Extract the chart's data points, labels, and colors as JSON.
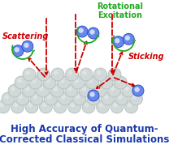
{
  "bg_color": "#ffffff",
  "title_line1": "High Accuracy of Quantum-",
  "title_line2": "Corrected Classical Simulations",
  "title_color": "#1a3aaa",
  "title_fontsize": 8.5,
  "label_scattering": "Scattering",
  "label_scattering_color": "#cc0000",
  "label_rotational": "Rotational",
  "label_excitation": "Excitation",
  "label_rot_color": "#22aa22",
  "label_sticking": "Sticking",
  "label_sticking_color": "#cc0000",
  "molecule_color_center": "#4466dd",
  "molecule_color_mid": "#6688ee",
  "molecule_color_edge": "#2244bb",
  "molecule_bond_color": "#111122",
  "surface_ball_color": "#d0d8d8",
  "surface_ball_edge": "#b0b8b8",
  "arrow_color": "#cc0000",
  "arrow_lw": 1.2,
  "label_fontsize": 7.0,
  "label_fontsize_small": 6.5
}
